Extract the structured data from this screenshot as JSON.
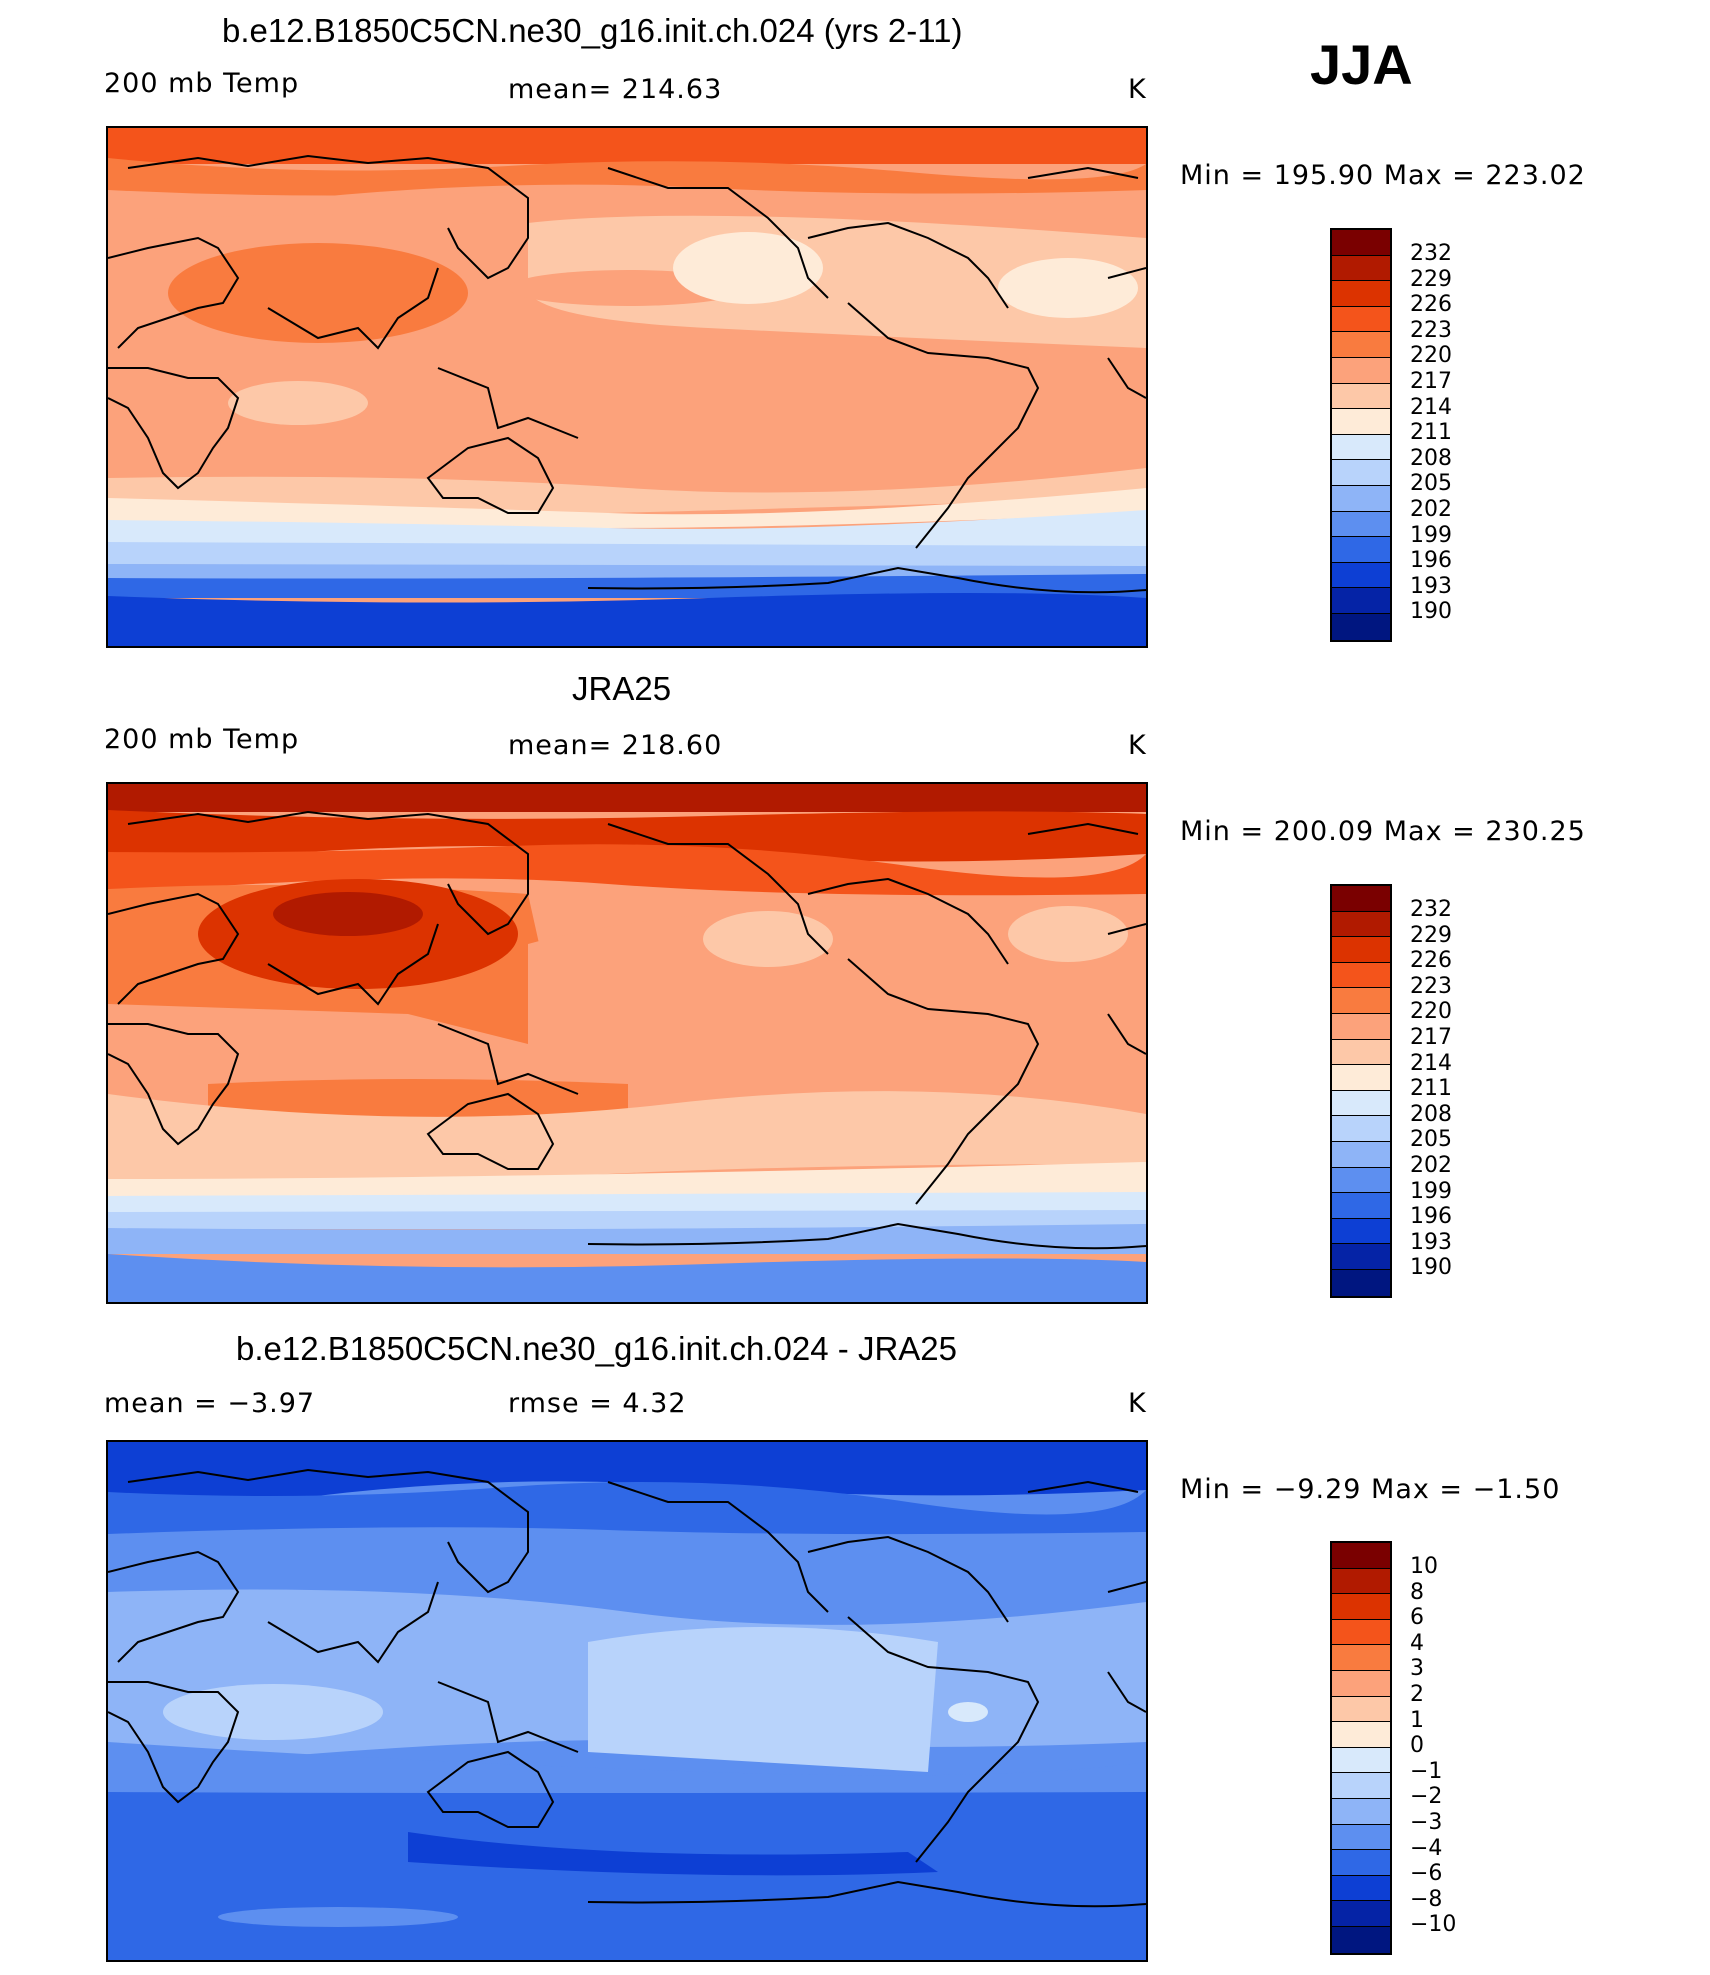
{
  "season": "JJA",
  "panels": [
    {
      "title": "b.e12.B1850C5CN.ne30_g16.init.ch.024 (yrs 2-11)",
      "left_label": "200 mb Temp",
      "center_label": "mean=  214.63",
      "units": "K",
      "minmax": "Min  =  195.90  Max  =  223.02"
    },
    {
      "title": "JRA25",
      "left_label": "200 mb Temp",
      "center_label": "mean=  218.60",
      "units": "K",
      "minmax": "Min  =  200.09  Max  =  230.25"
    },
    {
      "title": "b.e12.B1850C5CN.ne30_g16.init.ch.024 - JRA25",
      "left_label": "mean =    −3.97",
      "center_label": "rmse =     4.32",
      "units": "K",
      "minmax": "Min  =    −9.29  Max  =    −1.50"
    }
  ],
  "colorbars": [
    {
      "labels": [
        "232",
        "229",
        "226",
        "223",
        "220",
        "217",
        "214",
        "211",
        "208",
        "205",
        "202",
        "199",
        "196",
        "193",
        "190"
      ]
    },
    {
      "labels": [
        "232",
        "229",
        "226",
        "223",
        "220",
        "217",
        "214",
        "211",
        "208",
        "205",
        "202",
        "199",
        "196",
        "193",
        "190"
      ]
    },
    {
      "labels": [
        "10",
        "8",
        "6",
        "4",
        "3",
        "2",
        "1",
        "0",
        "−1",
        "−2",
        "−3",
        "−4",
        "−6",
        "−8",
        "−10"
      ]
    }
  ],
  "palette": [
    "#7a0000",
    "#b11a00",
    "#dc3300",
    "#f4541b",
    "#f97b3f",
    "#fca27b",
    "#fdc8a8",
    "#feebd8",
    "#d8e9fb",
    "#b8d3fb",
    "#8eb4f7",
    "#5d8ff0",
    "#2f68e6",
    "#0d3fd4",
    "#0523a6",
    "#001680"
  ]
}
